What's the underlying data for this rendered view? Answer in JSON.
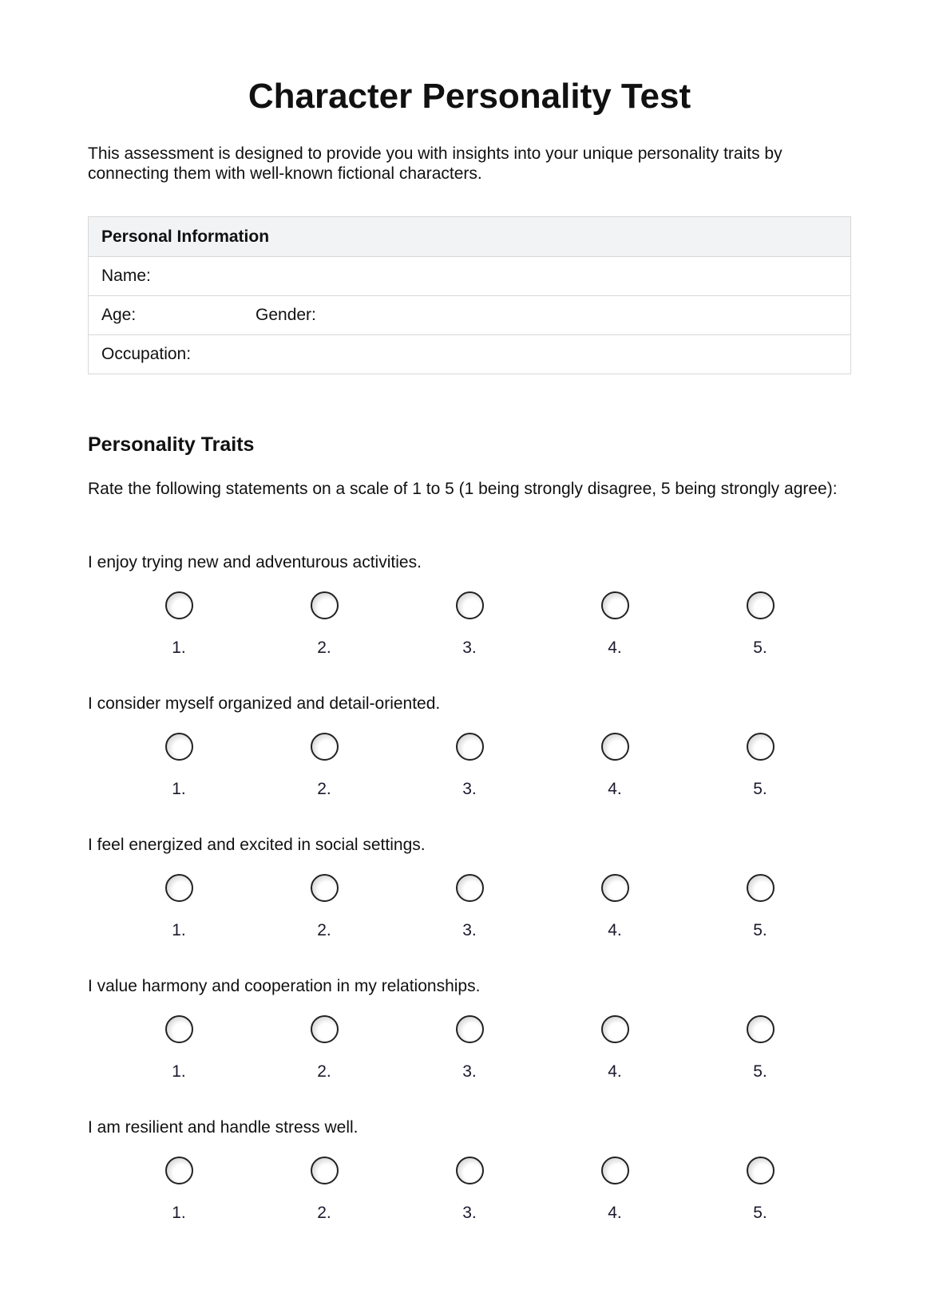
{
  "title": "Character Personality Test",
  "intro": "This assessment is designed to provide you with insights into your unique personality traits by connecting them with well-known fictional characters.",
  "personal_info": {
    "header": "Personal Information",
    "name": "Name:",
    "age": "Age:",
    "gender": "Gender:",
    "occupation": "Occupation:"
  },
  "traits": {
    "heading": "Personality Traits",
    "instructions": "Rate the following statements on a scale of 1 to 5 (1 being strongly disagree, 5 being strongly agree):",
    "scale": [
      "1.",
      "2.",
      "3.",
      "4.",
      "5."
    ],
    "questions": [
      "I enjoy trying new and adventurous activities.",
      "I consider myself organized and detail-oriented.",
      "I feel energized and excited in social settings.",
      "I value harmony and cooperation in my relationships.",
      "I am resilient and handle stress well."
    ]
  }
}
